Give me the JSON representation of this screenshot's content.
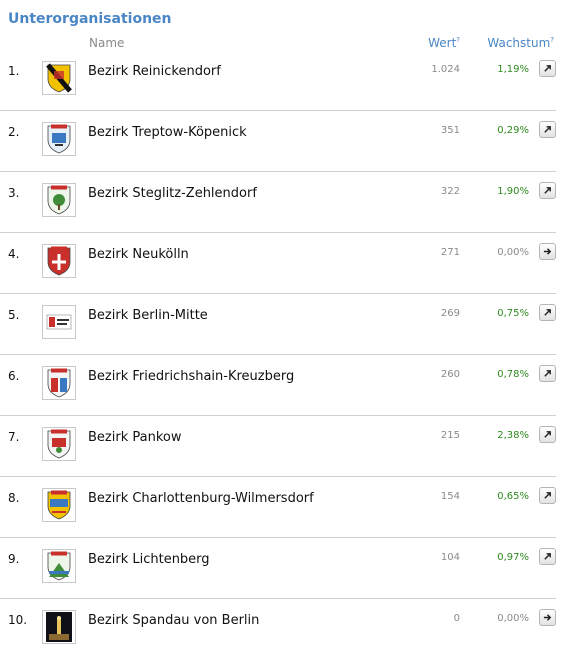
{
  "title": "Unterorganisationen",
  "headers": {
    "name": "Name",
    "wert": "Wert",
    "wachstum": "Wachstum",
    "help": "?"
  },
  "rows": [
    {
      "rank": "1.",
      "name": "Bezirk Reinickendorf",
      "value": "1.024",
      "growth": "1,19%",
      "trend": "up",
      "crest": "crest-reinickendorf"
    },
    {
      "rank": "2.",
      "name": "Bezirk Treptow-Köpenick",
      "value": "351",
      "growth": "0,29%",
      "trend": "up",
      "crest": "crest-treptow"
    },
    {
      "rank": "3.",
      "name": "Bezirk Steglitz-Zehlendorf",
      "value": "322",
      "growth": "1,90%",
      "trend": "up",
      "crest": "crest-steglitz"
    },
    {
      "rank": "4.",
      "name": "Bezirk Neukölln",
      "value": "271",
      "growth": "0,00%",
      "trend": "flat",
      "crest": "crest-neukoelln"
    },
    {
      "rank": "5.",
      "name": "Bezirk Berlin-Mitte",
      "value": "269",
      "growth": "0,75%",
      "trend": "up",
      "crest": "crest-mitte"
    },
    {
      "rank": "6.",
      "name": "Bezirk Friedrichshain-Kreuzberg",
      "value": "260",
      "growth": "0,78%",
      "trend": "up",
      "crest": "crest-friedrichshain"
    },
    {
      "rank": "7.",
      "name": "Bezirk Pankow",
      "value": "215",
      "growth": "2,38%",
      "trend": "up",
      "crest": "crest-pankow"
    },
    {
      "rank": "8.",
      "name": "Bezirk Charlottenburg-Wilmersdorf",
      "value": "154",
      "growth": "0,65%",
      "trend": "up",
      "crest": "crest-charlottenburg"
    },
    {
      "rank": "9.",
      "name": "Bezirk Lichtenberg",
      "value": "104",
      "growth": "0,97%",
      "trend": "up",
      "crest": "crest-lichtenberg"
    },
    {
      "rank": "10.",
      "name": "Bezirk Spandau von Berlin",
      "value": "0",
      "growth": "0,00%",
      "trend": "flat",
      "crest": "photo-spandau"
    }
  ],
  "colors": {
    "accent": "#4a86c5",
    "positive": "#2e8b1e",
    "muted": "#8a8a8a"
  }
}
